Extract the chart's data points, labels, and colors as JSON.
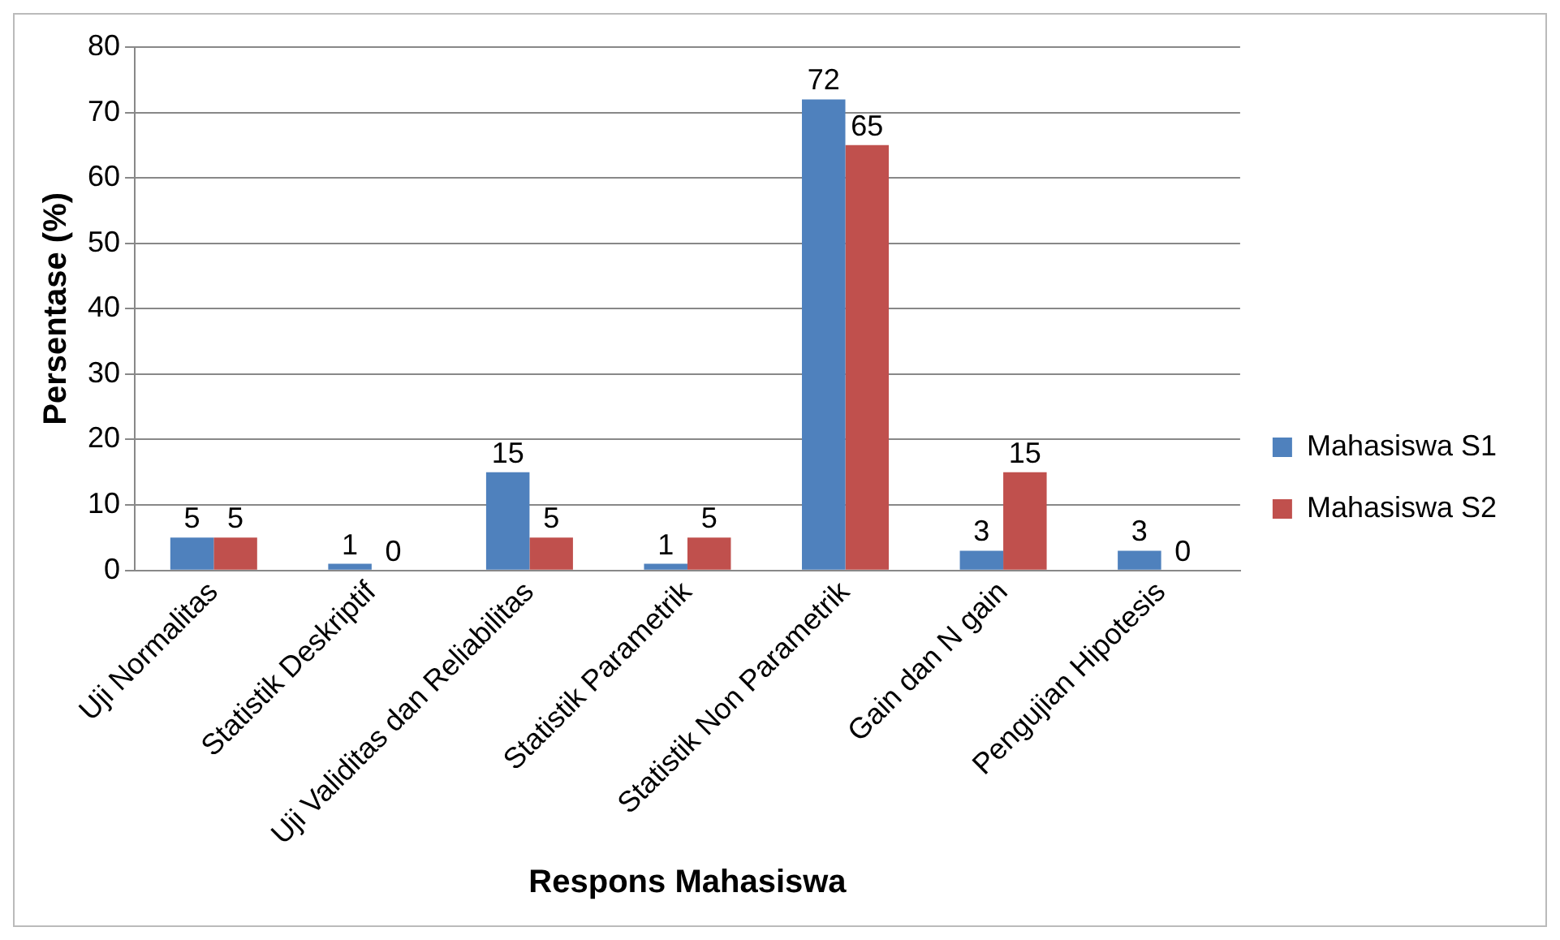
{
  "chart_data": {
    "type": "bar",
    "xlabel": "Respons Mahasiswa",
    "ylabel": "Persentase (%)",
    "categories": [
      "Uji Normalitas",
      "Statistik Deskriptif",
      "Uji Validitas dan Reliabilitas",
      "Statistik Parametrik",
      "Statistik Non Parametrik",
      "Gain dan N gain",
      "Pengujian Hipotesis"
    ],
    "series": [
      {
        "name": "Mahasiswa S1",
        "color": "#4f81bd",
        "values": [
          5,
          1,
          15,
          1,
          72,
          3,
          3
        ]
      },
      {
        "name": "Mahasiswa S2",
        "color": "#c0504d",
        "values": [
          5,
          0,
          5,
          5,
          65,
          15,
          0
        ]
      }
    ],
    "ylim": [
      0,
      80
    ],
    "yticks": [
      0,
      10,
      20,
      30,
      40,
      50,
      60,
      70,
      80
    ],
    "grid": "y",
    "legend": "right",
    "data_labels": true
  }
}
